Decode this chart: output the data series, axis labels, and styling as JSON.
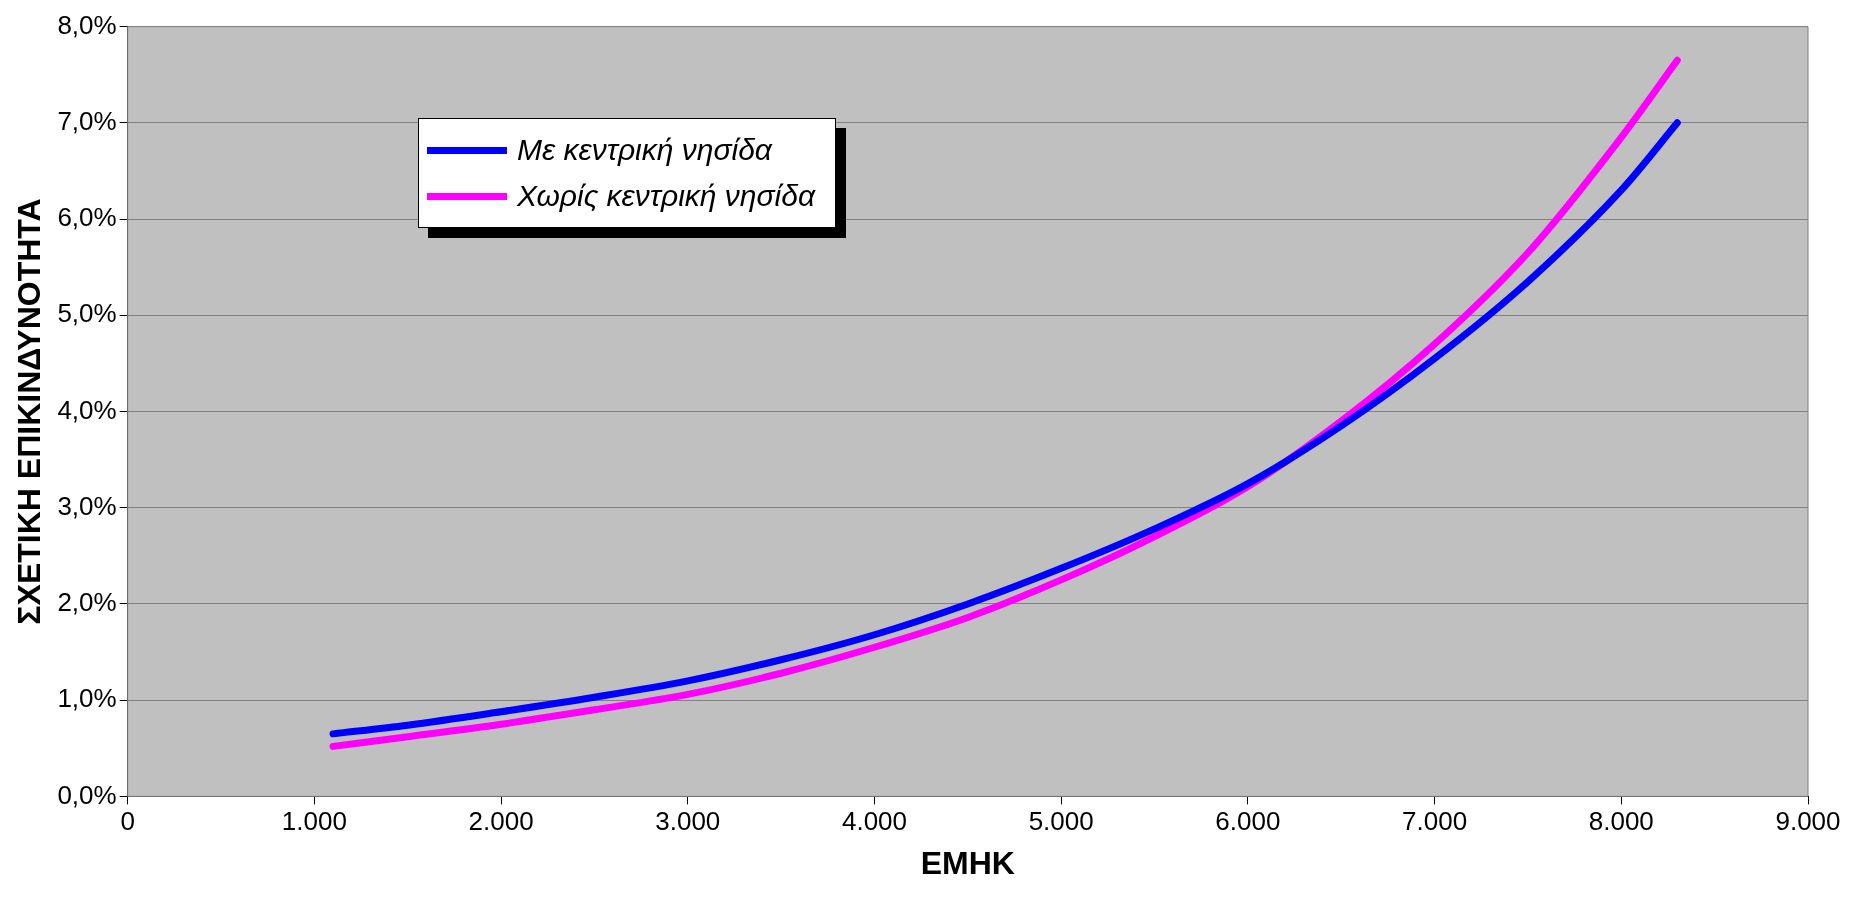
{
  "chart_data": {
    "type": "line",
    "xlabel": "ΕΜΗΚ",
    "ylabel": "ΣΧΕΤΙΚΗ ΕΠΙΚΙΝΔΥΝΟΤΗΤΑ",
    "xlim": [
      0,
      9000
    ],
    "ylim": [
      0,
      8
    ],
    "xticks": [
      {
        "value": 0,
        "label": "0"
      },
      {
        "value": 1000,
        "label": "1.000"
      },
      {
        "value": 2000,
        "label": "2.000"
      },
      {
        "value": 3000,
        "label": "3.000"
      },
      {
        "value": 4000,
        "label": "4.000"
      },
      {
        "value": 5000,
        "label": "5.000"
      },
      {
        "value": 6000,
        "label": "6.000"
      },
      {
        "value": 7000,
        "label": "7.000"
      },
      {
        "value": 8000,
        "label": "8.000"
      },
      {
        "value": 9000,
        "label": "9.000"
      }
    ],
    "yticks": [
      {
        "value": 0,
        "label": "0,0%"
      },
      {
        "value": 1,
        "label": "1,0%"
      },
      {
        "value": 2,
        "label": "2,0%"
      },
      {
        "value": 3,
        "label": "3,0%"
      },
      {
        "value": 4,
        "label": "4,0%"
      },
      {
        "value": 5,
        "label": "5,0%"
      },
      {
        "value": 6,
        "label": "6,0%"
      },
      {
        "value": 7,
        "label": "7,0%"
      },
      {
        "value": 8,
        "label": "8,0%"
      }
    ],
    "grid": "y",
    "legend": "top left",
    "marker": "none",
    "line_style": "solid",
    "x": [
      1100,
      1500,
      2000,
      2500,
      3000,
      3500,
      4000,
      4500,
      5000,
      5500,
      6000,
      6500,
      7000,
      7500,
      8000,
      8300
    ],
    "series": [
      {
        "name": "Με κεντρική νησίδα",
        "color": "#0000ff",
        "values": [
          0.65,
          0.74,
          0.88,
          1.03,
          1.2,
          1.42,
          1.68,
          2.0,
          2.37,
          2.78,
          3.25,
          3.85,
          4.55,
          5.35,
          6.3,
          7.0
        ]
      },
      {
        "name": "Χωρίς κεντρική νησίδα",
        "color": "#ff00ff",
        "values": [
          0.52,
          0.62,
          0.75,
          0.9,
          1.06,
          1.28,
          1.55,
          1.86,
          2.25,
          2.7,
          3.22,
          3.9,
          4.7,
          5.65,
          6.85,
          7.65
        ]
      }
    ]
  }
}
